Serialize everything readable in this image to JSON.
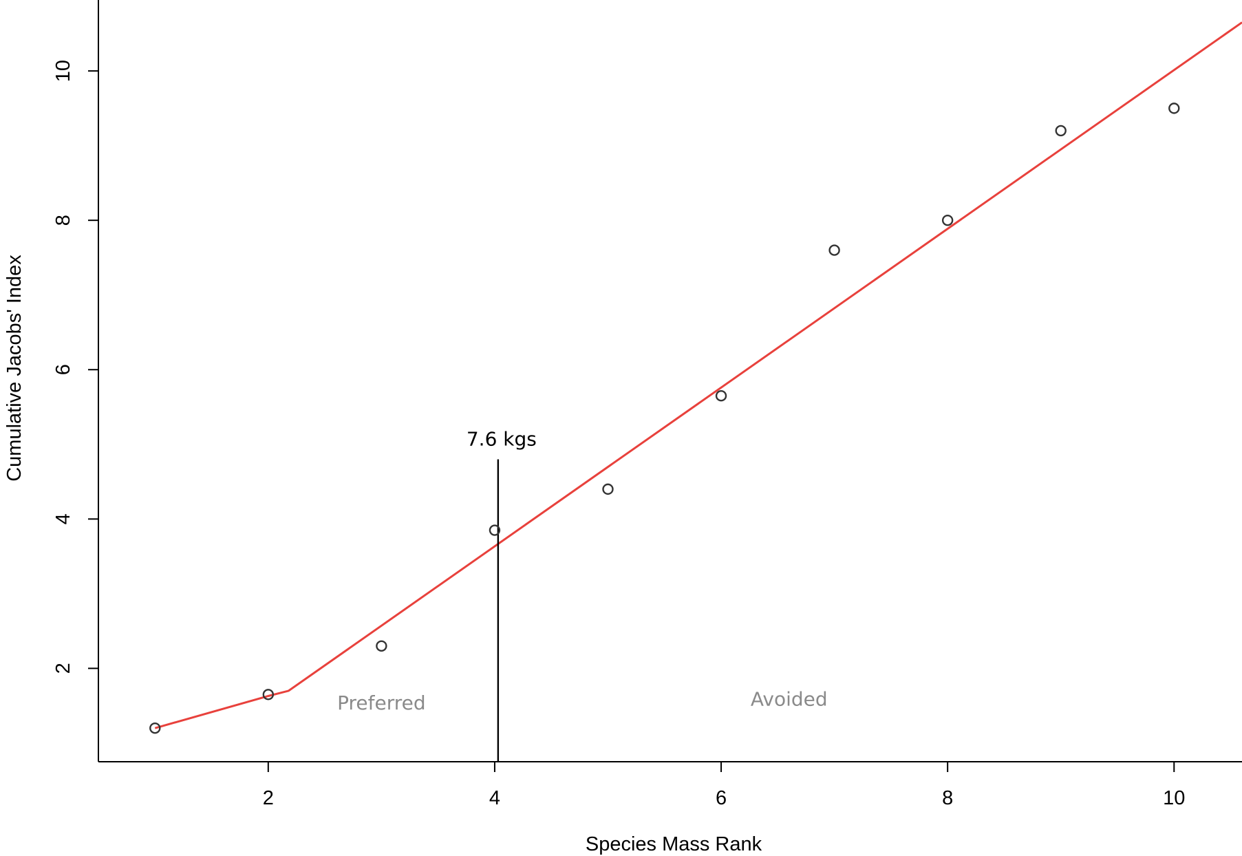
{
  "chart_data": {
    "type": "scatter",
    "title": "",
    "xlabel": "Species Mass Rank",
    "ylabel": "Cumulative Jacobs' Index",
    "xlim": [
      0.5,
      10.6
    ],
    "ylim": [
      0.75,
      10.95
    ],
    "xticks": [
      2,
      4,
      6,
      8,
      10
    ],
    "xtick_labels": [
      "2",
      "4",
      "6",
      "8",
      "10"
    ],
    "yticks": [
      2,
      4,
      6,
      8,
      10
    ],
    "ytick_labels": [
      "2",
      "4",
      "6",
      "8",
      "10"
    ],
    "grid": false,
    "legend": "none",
    "points": {
      "x": [
        1,
        2,
        3,
        4,
        5,
        6,
        7,
        8,
        9,
        10
      ],
      "y": [
        1.2,
        1.65,
        2.3,
        3.85,
        4.4,
        5.65,
        7.6,
        8.0,
        9.2,
        9.5
      ]
    },
    "fit_line": {
      "color": "#e8413c",
      "x": [
        1,
        2,
        2.18,
        10.6
      ],
      "y": [
        1.2,
        1.63,
        1.7,
        10.65
      ]
    },
    "annotations": {
      "threshold": {
        "label": "7.6 kgs",
        "x": 4.03,
        "y_range": [
          0.75,
          4.8
        ]
      },
      "regions": [
        {
          "label": "Preferred",
          "x": 3.0,
          "y": 1.45
        },
        {
          "label": "Avoided",
          "x": 6.6,
          "y": 1.5
        }
      ]
    }
  }
}
